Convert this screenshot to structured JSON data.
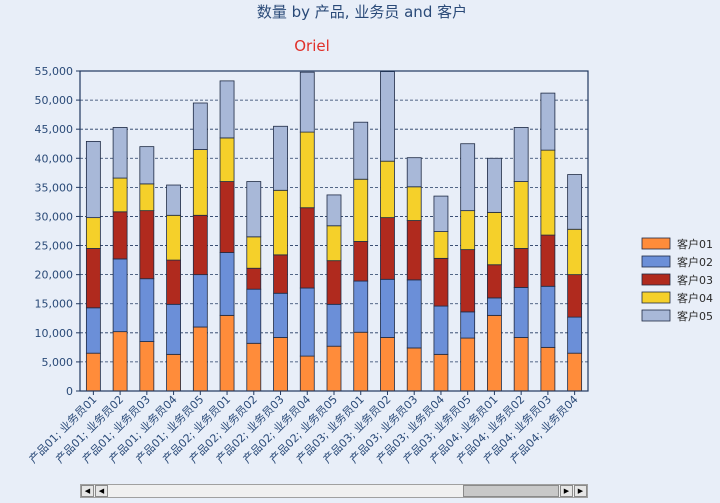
{
  "chart_data": {
    "type": "bar",
    "stacked": true,
    "title": "数量 by 产品, 业务员 and 客户",
    "subtitle": "Oriel",
    "categories": [
      "产品01; 业务员01",
      "产品01; 业务员02",
      "产品01; 业务员03",
      "产品01; 业务员04",
      "产品01; 业务员05",
      "产品02; 业务员01",
      "产品02; 业务员02",
      "产品02; 业务员03",
      "产品02; 业务员04",
      "产品02; 业务员05",
      "产品03; 业务员01",
      "产品03; 业务员02",
      "产品03; 业务员03",
      "产品03; 业务员04",
      "产品03; 业务员05",
      "产品04; 业务员01",
      "产品04; 业务员02",
      "产品04; 业务员03",
      "产品04; 业务员04"
    ],
    "series": [
      {
        "name": "客户01",
        "color": "#ff8c3a",
        "values": [
          6500,
          10200,
          8500,
          6300,
          11000,
          13000,
          8200,
          9200,
          6000,
          7700,
          10100,
          9200,
          7400,
          6300,
          9100,
          13000,
          9200,
          7500,
          6500
        ]
      },
      {
        "name": "客户02",
        "color": "#6b8fd8",
        "values": [
          7800,
          12500,
          10800,
          8600,
          9000,
          10800,
          9300,
          7600,
          11700,
          7200,
          8800,
          10000,
          11700,
          8300,
          4500,
          3000,
          8600,
          10500,
          6200
        ]
      },
      {
        "name": "客户03",
        "color": "#b02a1e",
        "values": [
          10200,
          8100,
          11700,
          7600,
          10200,
          12200,
          3600,
          6600,
          13800,
          7500,
          6800,
          10600,
          10200,
          8200,
          10700,
          5700,
          6700,
          8800,
          7300
        ]
      },
      {
        "name": "客户04",
        "color": "#f5d02a",
        "values": [
          5300,
          5800,
          4600,
          7700,
          11300,
          7500,
          5400,
          11100,
          13000,
          6000,
          10700,
          9700,
          5800,
          4600,
          6700,
          9000,
          11500,
          14600,
          7800
        ]
      },
      {
        "name": "客户05",
        "color": "#a8b8d8",
        "values": [
          13100,
          8700,
          6400,
          5200,
          8000,
          9800,
          9500,
          11000,
          10300,
          5300,
          9800,
          15400,
          5000,
          6100,
          11500,
          9300,
          9300,
          9800,
          9400
        ]
      }
    ],
    "ylim": [
      0,
      55000
    ],
    "yticks": [
      "0",
      "5,000",
      "10,000",
      "15,000",
      "20,000",
      "25,000",
      "30,000",
      "35,000",
      "40,000",
      "45,000",
      "50,000",
      "55,000"
    ],
    "grid": true,
    "legend": "right"
  }
}
